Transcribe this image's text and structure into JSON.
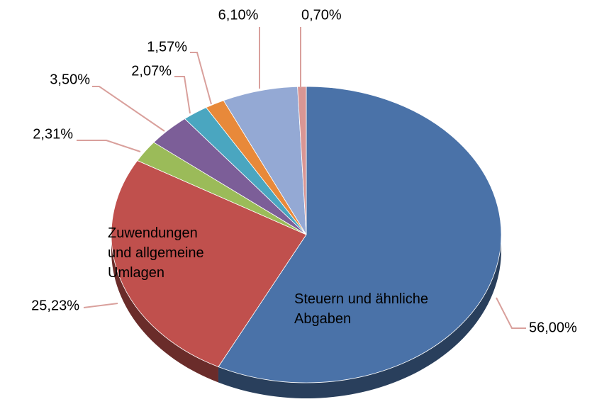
{
  "chart_data": {
    "type": "pie",
    "categories": [
      "Steuern und ähnliche Abgaben",
      "Zuwendungen und allgemeine Umlagen",
      null,
      null,
      null,
      null,
      null,
      null
    ],
    "values": [
      56.0,
      25.23,
      2.31,
      3.5,
      2.07,
      1.57,
      6.1,
      0.7
    ],
    "value_labels": [
      "56,00%",
      "25,23%",
      "2,31%",
      "3,50%",
      "2,07%",
      "1,57%",
      "6,10%",
      "0,70%"
    ],
    "colors": [
      "#4a72a8",
      "#c0504d",
      "#9bbb59",
      "#7c5e98",
      "#4aa6c0",
      "#e8893a",
      "#94a9d4",
      "#d99694"
    ]
  }
}
